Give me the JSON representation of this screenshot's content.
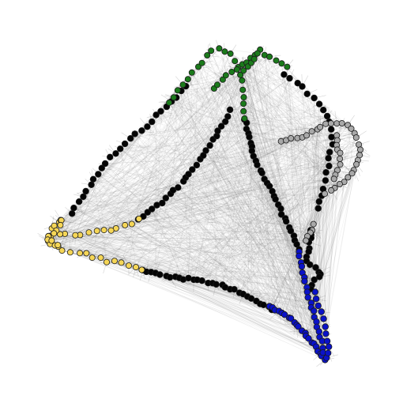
{
  "figure": {
    "type": "network-graph",
    "background": "#ffffff",
    "edge_color": "#808080",
    "node_stroke": "#1a1a1a",
    "groups": [
      {
        "id": "black",
        "color": "#050505"
      },
      {
        "id": "yellow",
        "color": "#f5d657"
      },
      {
        "id": "green",
        "color": "#1b7a1b"
      },
      {
        "id": "gray",
        "color": "#a9a9a9"
      },
      {
        "id": "blue",
        "color": "#0a12c8"
      }
    ]
  }
}
